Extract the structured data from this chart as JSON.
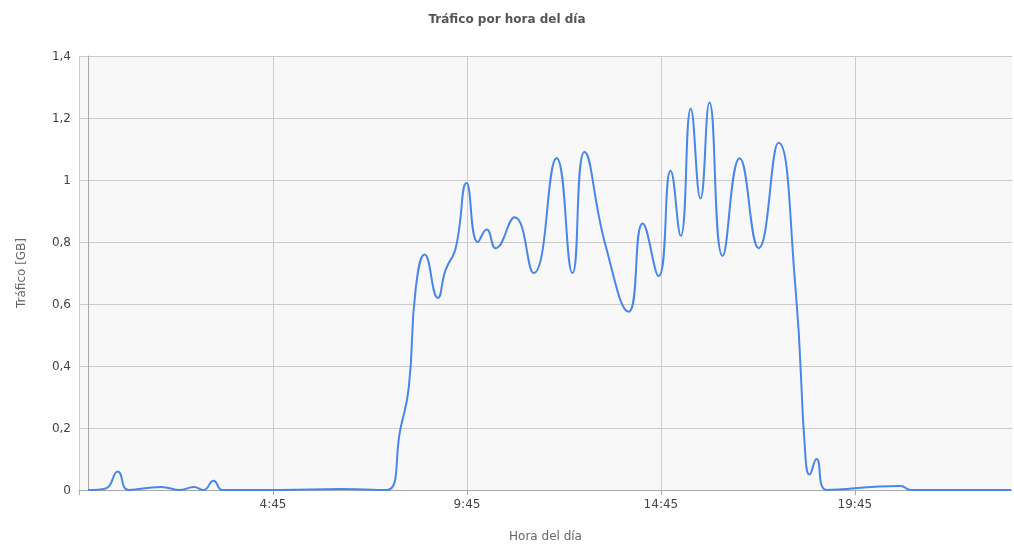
{
  "chart_data": {
    "type": "line",
    "title": "Tráfico por hora del día",
    "xlabel": "Hora del día",
    "ylabel": "Tráfico [GB]",
    "x": [
      0,
      0.44,
      0.75,
      1.03,
      1.86,
      2.37,
      2.71,
      2.96,
      3.22,
      3.45,
      4.95,
      6.5,
      7.68,
      8.04,
      8.25,
      8.43,
      8.66,
      9.0,
      9.2,
      9.46,
      9.74,
      10.03,
      10.26,
      10.49,
      10.98,
      11.47,
      12.06,
      12.47,
      12.78,
      13.32,
      13.92,
      14.28,
      14.69,
      15.0,
      15.26,
      15.52,
      15.77,
      16.0,
      16.34,
      16.78,
      17.27,
      17.78,
      18.22,
      18.48,
      18.58,
      18.76,
      19.02,
      20.93,
      21.19,
      23.76
    ],
    "series": [
      {
        "color": "#4a86e8",
        "values": [
          0,
          0.005,
          0.06,
          0,
          0.01,
          0,
          0.01,
          0,
          0.03,
          0,
          0,
          0.003,
          0,
          0.2,
          0.33,
          0.65,
          0.76,
          0.62,
          0.71,
          0.78,
          0.99,
          0.8,
          0.84,
          0.78,
          0.88,
          0.7,
          1.07,
          0.7,
          1.09,
          0.79,
          0.575,
          0.86,
          0.69,
          1.03,
          0.82,
          1.23,
          0.94,
          1.25,
          0.755,
          1.07,
          0.78,
          1.12,
          0.65,
          0.1,
          0.05,
          0.1,
          0,
          0.013,
          0,
          0
        ]
      }
    ],
    "xlim": [
      -0.25,
      23.8
    ],
    "xticks": [
      {
        "value": -0.25,
        "label": null
      },
      {
        "value": 4.75,
        "label": "4:45"
      },
      {
        "value": 9.75,
        "label": "9:45"
      },
      {
        "value": 14.75,
        "label": "14:45"
      },
      {
        "value": 19.75,
        "label": "19:45"
      }
    ],
    "ylim": [
      0,
      1.4
    ],
    "yticks": [
      0,
      {
        "value": 0.2,
        "label": "0,2"
      },
      {
        "value": 0.4,
        "label": "0,4"
      },
      {
        "value": 0.6,
        "label": "0,6"
      },
      {
        "value": 0.8,
        "label": "0,8"
      },
      1,
      {
        "value": 1.2,
        "label": "1,2"
      },
      {
        "value": 1.4,
        "label": "1,4"
      }
    ],
    "grid": true,
    "marker": "none",
    "line_style": "solid"
  }
}
